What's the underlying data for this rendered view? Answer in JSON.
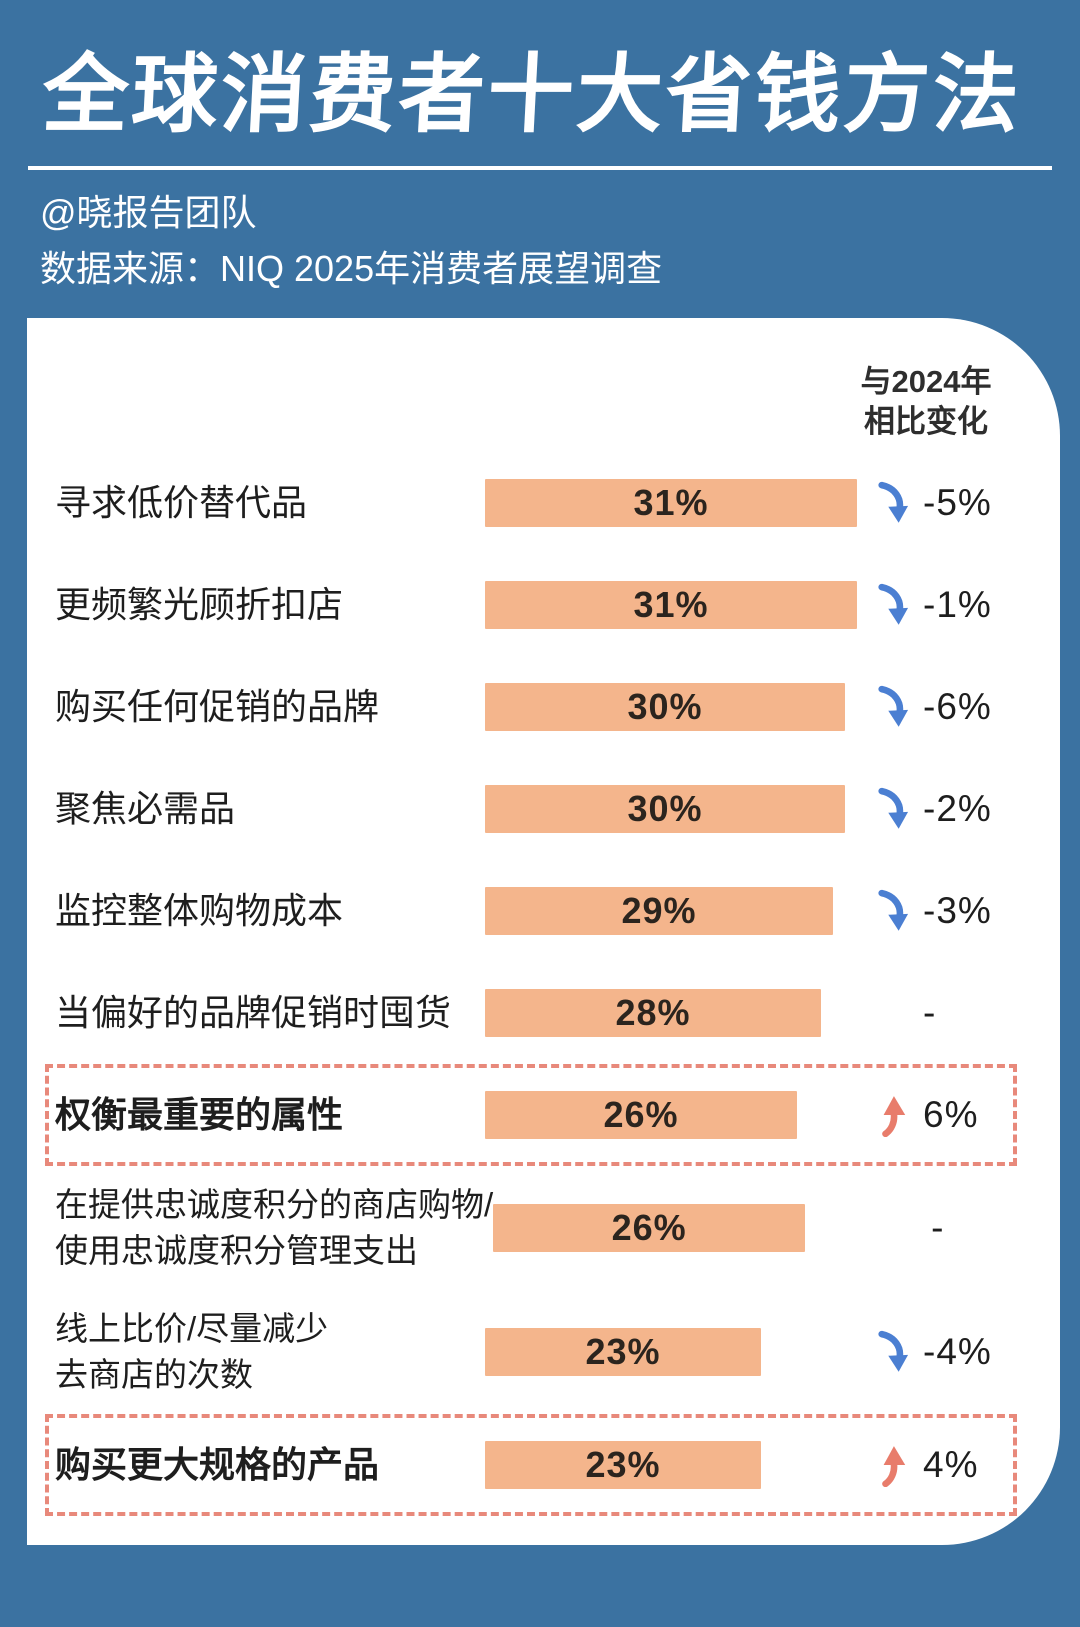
{
  "colors": {
    "background": "#3B72A1",
    "card": "#FFFFFF",
    "bar": "#F4B58C",
    "bar_text": "#2B241E",
    "label_text": "#1E1E1E",
    "change_text": "#1E1E1E",
    "header_text": "#2E2E2E",
    "down_arrow": "#4B7FD2",
    "up_arrow": "#E87C6B",
    "highlight_border": "#E8897B",
    "title_text": "#FFFFFF"
  },
  "header": {
    "title": "全球消费者十大省钱方法",
    "byline": "@晓报告团队",
    "source": "数据来源：NIQ 2025年消费者展望调查"
  },
  "chart_data": {
    "type": "bar",
    "orientation": "horizontal",
    "title": "全球消费者十大省钱方法",
    "source": "NIQ 2025年消费者展望调查",
    "change_header": "与2024年\n相比变化",
    "categories": [
      "寻求低价替代品",
      "更频繁光顾折扣店",
      "购买任何促销的品牌",
      "聚焦必需品",
      "监控整体购物成本",
      "当偏好的品牌促销时囤货",
      "权衡最重要的属性",
      "在提供忠诚度积分的商店购物/\n使用忠诚度积分管理支出",
      "线上比价/尽量减少\n去商店的次数",
      "购买更大规格的产品"
    ],
    "values": [
      31,
      31,
      30,
      30,
      29,
      28,
      26,
      26,
      23,
      23
    ],
    "value_labels": [
      "31%",
      "31%",
      "30%",
      "30%",
      "29%",
      "28%",
      "26%",
      "26%",
      "23%",
      "23%"
    ],
    "changes_vs_2024": [
      "-5%",
      "-1%",
      "-6%",
      "-2%",
      "-3%",
      "-",
      "6%",
      "-",
      "-4%",
      "4%"
    ],
    "change_directions": [
      "down",
      "down",
      "down",
      "down",
      "down",
      "none",
      "up",
      "none",
      "down",
      "up"
    ],
    "highlighted_rows": [
      6,
      9
    ],
    "bold_rows": [
      6,
      9
    ],
    "xlim": [
      0,
      35
    ],
    "legend_position": "none",
    "grid": false
  }
}
